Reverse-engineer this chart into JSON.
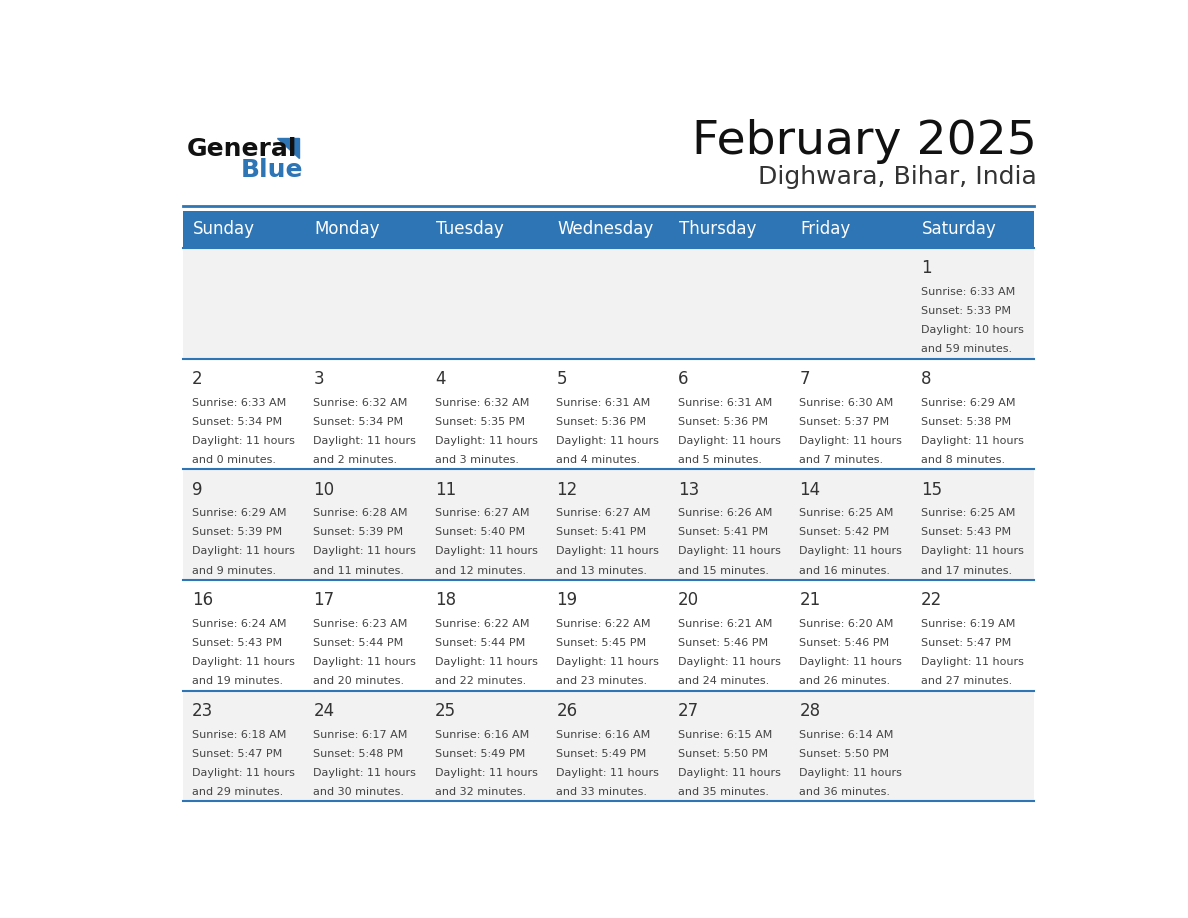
{
  "title": "February 2025",
  "subtitle": "Dighwara, Bihar, India",
  "days_of_week": [
    "Sunday",
    "Monday",
    "Tuesday",
    "Wednesday",
    "Thursday",
    "Friday",
    "Saturday"
  ],
  "header_bg": "#2E75B6",
  "header_text": "#FFFFFF",
  "row_bg_odd": "#F2F2F2",
  "row_bg_even": "#FFFFFF",
  "separator_color": "#2E75B6",
  "day_number_color": "#333333",
  "info_text_color": "#444444",
  "title_color": "#111111",
  "subtitle_color": "#333333",
  "logo_general_color": "#111111",
  "logo_blue_color": "#2E75B6",
  "weeks": [
    {
      "days": [
        {
          "date": "",
          "sunrise": "",
          "sunset": "",
          "daylight_h": "",
          "daylight_m": ""
        },
        {
          "date": "",
          "sunrise": "",
          "sunset": "",
          "daylight_h": "",
          "daylight_m": ""
        },
        {
          "date": "",
          "sunrise": "",
          "sunset": "",
          "daylight_h": "",
          "daylight_m": ""
        },
        {
          "date": "",
          "sunrise": "",
          "sunset": "",
          "daylight_h": "",
          "daylight_m": ""
        },
        {
          "date": "",
          "sunrise": "",
          "sunset": "",
          "daylight_h": "",
          "daylight_m": ""
        },
        {
          "date": "",
          "sunrise": "",
          "sunset": "",
          "daylight_h": "",
          "daylight_m": ""
        },
        {
          "date": "1",
          "sunrise": "6:33 AM",
          "sunset": "5:33 PM",
          "daylight_h": "10",
          "daylight_m": "59"
        }
      ]
    },
    {
      "days": [
        {
          "date": "2",
          "sunrise": "6:33 AM",
          "sunset": "5:34 PM",
          "daylight_h": "11",
          "daylight_m": "0"
        },
        {
          "date": "3",
          "sunrise": "6:32 AM",
          "sunset": "5:34 PM",
          "daylight_h": "11",
          "daylight_m": "2"
        },
        {
          "date": "4",
          "sunrise": "6:32 AM",
          "sunset": "5:35 PM",
          "daylight_h": "11",
          "daylight_m": "3"
        },
        {
          "date": "5",
          "sunrise": "6:31 AM",
          "sunset": "5:36 PM",
          "daylight_h": "11",
          "daylight_m": "4"
        },
        {
          "date": "6",
          "sunrise": "6:31 AM",
          "sunset": "5:36 PM",
          "daylight_h": "11",
          "daylight_m": "5"
        },
        {
          "date": "7",
          "sunrise": "6:30 AM",
          "sunset": "5:37 PM",
          "daylight_h": "11",
          "daylight_m": "7"
        },
        {
          "date": "8",
          "sunrise": "6:29 AM",
          "sunset": "5:38 PM",
          "daylight_h": "11",
          "daylight_m": "8"
        }
      ]
    },
    {
      "days": [
        {
          "date": "9",
          "sunrise": "6:29 AM",
          "sunset": "5:39 PM",
          "daylight_h": "11",
          "daylight_m": "9"
        },
        {
          "date": "10",
          "sunrise": "6:28 AM",
          "sunset": "5:39 PM",
          "daylight_h": "11",
          "daylight_m": "11"
        },
        {
          "date": "11",
          "sunrise": "6:27 AM",
          "sunset": "5:40 PM",
          "daylight_h": "11",
          "daylight_m": "12"
        },
        {
          "date": "12",
          "sunrise": "6:27 AM",
          "sunset": "5:41 PM",
          "daylight_h": "11",
          "daylight_m": "13"
        },
        {
          "date": "13",
          "sunrise": "6:26 AM",
          "sunset": "5:41 PM",
          "daylight_h": "11",
          "daylight_m": "15"
        },
        {
          "date": "14",
          "sunrise": "6:25 AM",
          "sunset": "5:42 PM",
          "daylight_h": "11",
          "daylight_m": "16"
        },
        {
          "date": "15",
          "sunrise": "6:25 AM",
          "sunset": "5:43 PM",
          "daylight_h": "11",
          "daylight_m": "17"
        }
      ]
    },
    {
      "days": [
        {
          "date": "16",
          "sunrise": "6:24 AM",
          "sunset": "5:43 PM",
          "daylight_h": "11",
          "daylight_m": "19"
        },
        {
          "date": "17",
          "sunrise": "6:23 AM",
          "sunset": "5:44 PM",
          "daylight_h": "11",
          "daylight_m": "20"
        },
        {
          "date": "18",
          "sunrise": "6:22 AM",
          "sunset": "5:44 PM",
          "daylight_h": "11",
          "daylight_m": "22"
        },
        {
          "date": "19",
          "sunrise": "6:22 AM",
          "sunset": "5:45 PM",
          "daylight_h": "11",
          "daylight_m": "23"
        },
        {
          "date": "20",
          "sunrise": "6:21 AM",
          "sunset": "5:46 PM",
          "daylight_h": "11",
          "daylight_m": "24"
        },
        {
          "date": "21",
          "sunrise": "6:20 AM",
          "sunset": "5:46 PM",
          "daylight_h": "11",
          "daylight_m": "26"
        },
        {
          "date": "22",
          "sunrise": "6:19 AM",
          "sunset": "5:47 PM",
          "daylight_h": "11",
          "daylight_m": "27"
        }
      ]
    },
    {
      "days": [
        {
          "date": "23",
          "sunrise": "6:18 AM",
          "sunset": "5:47 PM",
          "daylight_h": "11",
          "daylight_m": "29"
        },
        {
          "date": "24",
          "sunrise": "6:17 AM",
          "sunset": "5:48 PM",
          "daylight_h": "11",
          "daylight_m": "30"
        },
        {
          "date": "25",
          "sunrise": "6:16 AM",
          "sunset": "5:49 PM",
          "daylight_h": "11",
          "daylight_m": "32"
        },
        {
          "date": "26",
          "sunrise": "6:16 AM",
          "sunset": "5:49 PM",
          "daylight_h": "11",
          "daylight_m": "33"
        },
        {
          "date": "27",
          "sunrise": "6:15 AM",
          "sunset": "5:50 PM",
          "daylight_h": "11",
          "daylight_m": "35"
        },
        {
          "date": "28",
          "sunrise": "6:14 AM",
          "sunset": "5:50 PM",
          "daylight_h": "11",
          "daylight_m": "36"
        },
        {
          "date": "",
          "sunrise": "",
          "sunset": "",
          "daylight_h": "",
          "daylight_m": ""
        }
      ]
    }
  ]
}
